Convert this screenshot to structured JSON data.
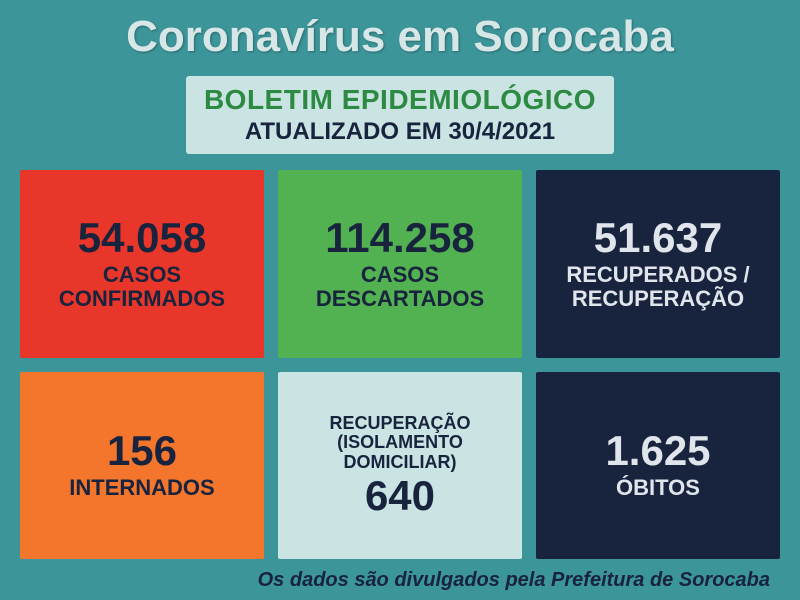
{
  "background_color": "#3c9599",
  "title": {
    "text": "Coronavírus em Sorocaba",
    "color": "#d7e7e7"
  },
  "subtitle": {
    "line1": "BOLETIM EPIDEMIOLÓGICO",
    "line2": "ATUALIZADO EM 30/4/2021",
    "background_color": "#c9e4e2",
    "line1_color": "#2d8a42",
    "line2_color": "#18233d"
  },
  "stats": {
    "confirmados": {
      "value": "54.058",
      "label": "CASOS\nCONFIRMADOS",
      "background_color": "#e8362a",
      "text_color": "#18233d"
    },
    "descartados": {
      "value": "114.258",
      "label": "CASOS\nDESCARTADOS",
      "background_color": "#52b151",
      "text_color": "#18233d"
    },
    "recuperados": {
      "value": "51.637",
      "label": "RECUPERADOS /\nRECUPERAÇÃO",
      "background_color": "#18233d",
      "text_color": "#e0e5ec"
    },
    "internados": {
      "value": "156",
      "label": "INTERNADOS",
      "background_color": "#f4752c",
      "text_color": "#18233d"
    },
    "isolamento": {
      "label_top": "RECUPERAÇÃO\n(ISOLAMENTO\nDOMICILIAR)",
      "value": "640",
      "background_color": "#c9e4e2",
      "text_color": "#18233d"
    },
    "obitos": {
      "value": "1.625",
      "label": "ÓBITOS",
      "background_color": "#18233d",
      "text_color": "#e0e5ec"
    }
  },
  "footer": {
    "text": "Os dados são divulgados pela Prefeitura de Sorocaba",
    "color": "#18233d"
  }
}
